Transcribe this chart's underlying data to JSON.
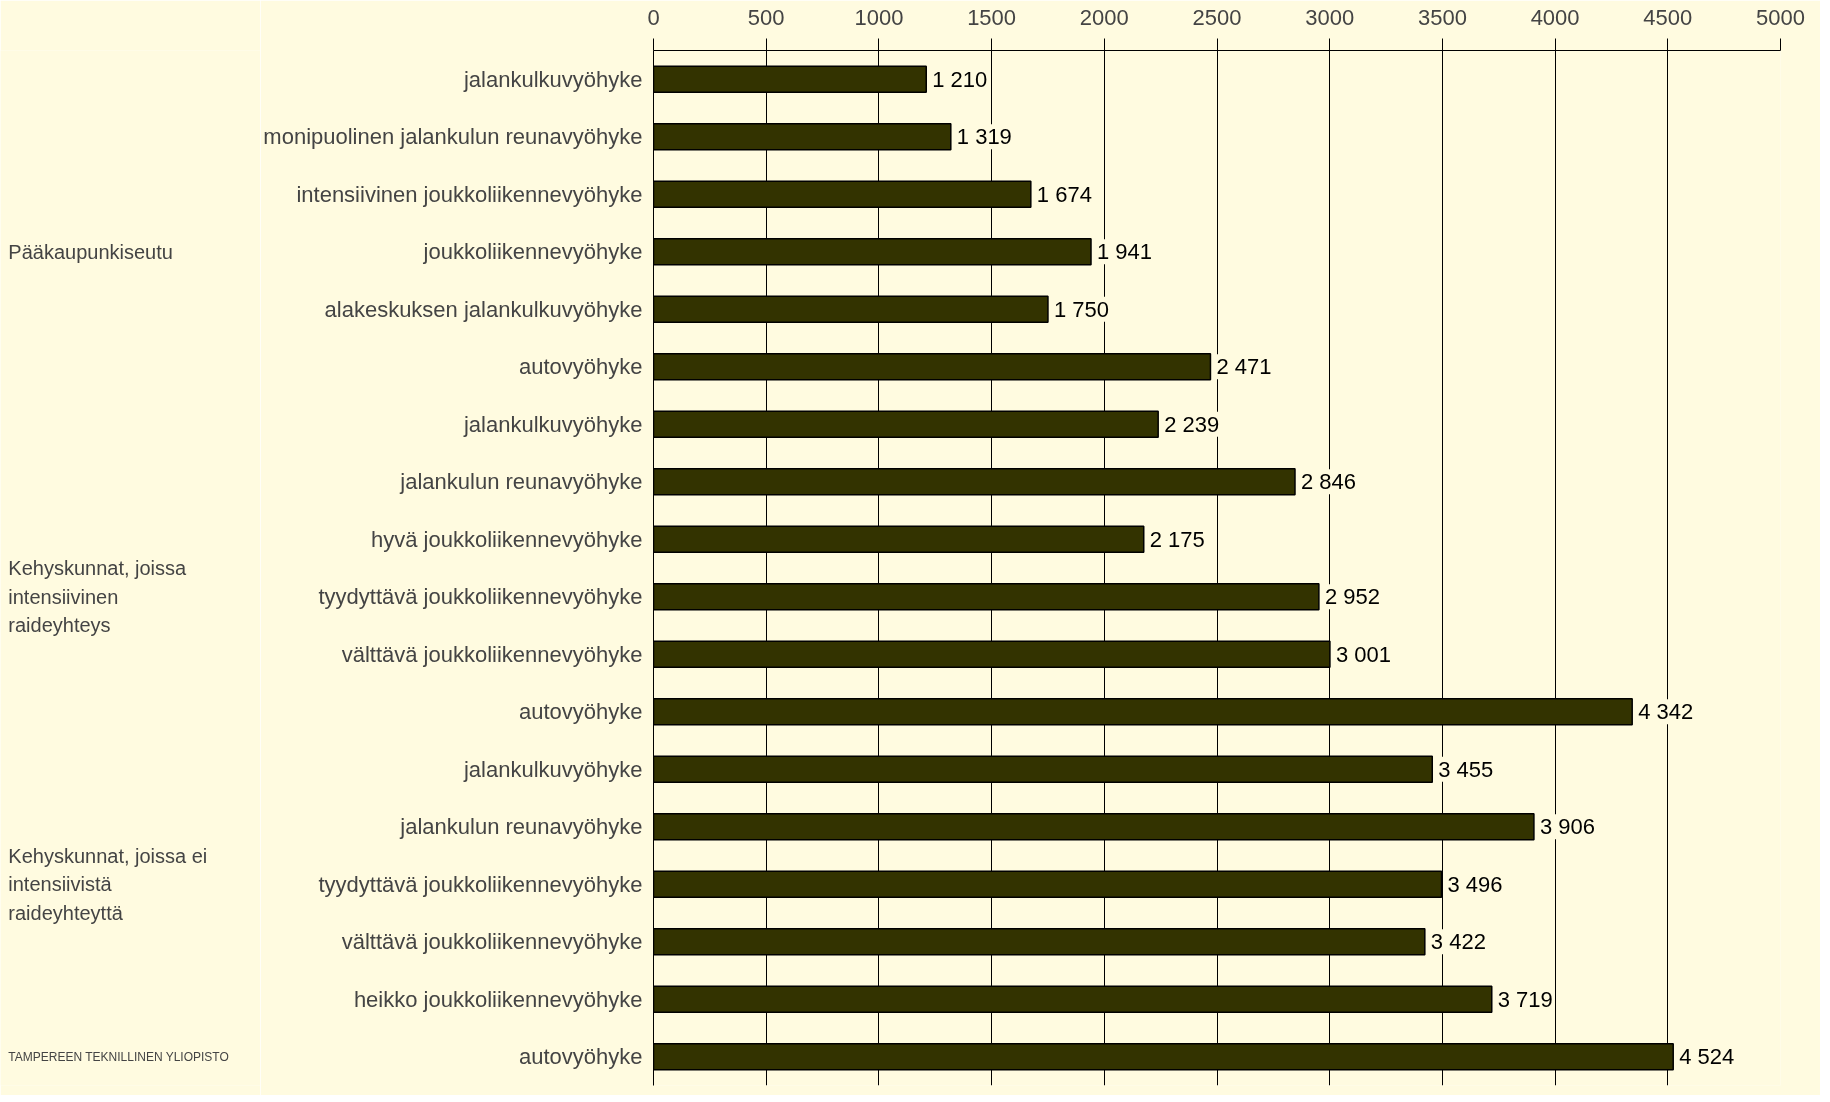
{
  "chart_data": {
    "type": "bar",
    "orientation": "horizontal",
    "categories": [
      "jalankulkuvyöhyke",
      "monipuolinen jalankulun reunavyöhyke",
      "intensiivinen joukkoliikennevyöhyke",
      "joukkoliikennevyöhyke",
      "alakeskuksen jalankulkuvyöhyke",
      "autovyöhyke",
      "jalankulkuvyöhyke",
      "jalankulun reunavyöhyke",
      "hyvä joukkoliikennevyöhyke",
      "tyydyttävä joukkoliikennevyöhyke",
      "välttävä joukkoliikennevyöhyke",
      "autovyöhyke",
      "jalankulkuvyöhyke",
      "jalankulun reunavyöhyke",
      "tyydyttävä joukkoliikennevyöhyke",
      "välttävä joukkoliikennevyöhyke",
      "heikko joukkoliikennevyöhyke",
      "autovyöhyke"
    ],
    "values": [
      1210,
      1319,
      1674,
      1941,
      1750,
      2471,
      2239,
      2846,
      2175,
      2952,
      3001,
      4342,
      3455,
      3906,
      3496,
      3422,
      3719,
      4524
    ],
    "value_labels": [
      "1 210",
      "1 319",
      "1 674",
      "1 941",
      "1 750",
      "2 471",
      "2 239",
      "2 846",
      "2 175",
      "2 952",
      "3 001",
      "4 342",
      "3 455",
      "3 906",
      "3 496",
      "3 422",
      "3 719",
      "4 524"
    ],
    "color": "#333300",
    "xlim": [
      0,
      5000
    ],
    "xticks": [
      0,
      500,
      1000,
      1500,
      2000,
      2500,
      3000,
      3500,
      4000,
      4500,
      5000
    ],
    "grid": "x",
    "legend": false,
    "annotations": [
      "Pääkaupunkiseutu",
      "Kehyskunnat, joissa\nintensiivinen\nraideyhteys",
      "Kehyskunnat, joissa ei\nintensiivistä\nraideyhteyttä",
      "TAMPEREEN TEKNILLINEN YLIOPISTO"
    ]
  }
}
